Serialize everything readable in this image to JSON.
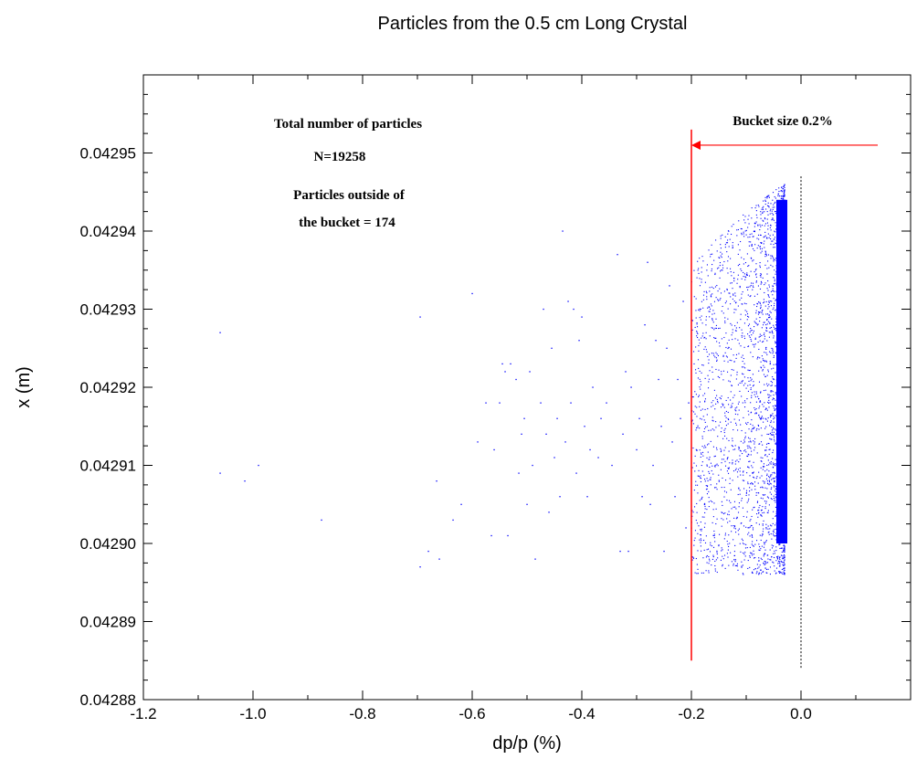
{
  "chart_data": {
    "type": "scatter",
    "title": "Particles from the 0.5 cm Long Crystal",
    "xlabel": "dp/p (%)",
    "ylabel": "x (m)",
    "xlim": [
      -1.2,
      0.2
    ],
    "ylim": [
      0.04288,
      0.04296
    ],
    "x_ticks": [
      "-1.2",
      "-1.0",
      "-0.8",
      "-0.6",
      "-0.4",
      "-0.2",
      "0.0"
    ],
    "y_ticks": [
      "0.04288",
      "0.04289",
      "0.04290",
      "0.04291",
      "0.04292",
      "0.04293",
      "0.04294",
      "0.04295"
    ],
    "x_tick_values": [
      -1.2,
      -1.0,
      -0.8,
      -0.6,
      -0.4,
      -0.2,
      0.0
    ],
    "y_tick_values": [
      0.04288,
      0.04289,
      0.0429,
      0.04291,
      0.04292,
      0.04293,
      0.04294,
      0.04295
    ],
    "grid": false,
    "colors": {
      "points": "#0000ff",
      "bucket": "#ff0000",
      "axis": "#000000"
    },
    "annotations": {
      "total_label": "Total number of particles",
      "total_value": "N=19258",
      "outside_line1": "Particles outside of",
      "outside_line2": "the bucket = 174",
      "bucket_label": "Bucket size 0.2%"
    },
    "bucket_line": {
      "x": -0.2,
      "y_from": 0.042885,
      "y_to": 0.042953
    },
    "zero_line": {
      "x": 0.0,
      "y_from": 0.042884,
      "y_to": 0.042947
    },
    "bucket_arrow": {
      "x_from": 0.14,
      "x_to": -0.2,
      "y": 0.042951
    },
    "points": [
      [
        -1.06,
        0.042927
      ],
      [
        -1.06,
        0.042909
      ],
      [
        -1.015,
        0.042908
      ],
      [
        -0.99,
        0.04291
      ],
      [
        -0.875,
        0.042903
      ],
      [
        -0.695,
        0.042929
      ],
      [
        -0.695,
        0.042897
      ],
      [
        -0.68,
        0.042899
      ],
      [
        -0.665,
        0.042908
      ],
      [
        -0.66,
        0.042898
      ],
      [
        -0.635,
        0.042903
      ],
      [
        -0.62,
        0.042905
      ],
      [
        -0.6,
        0.042932
      ],
      [
        -0.59,
        0.042913
      ],
      [
        -0.575,
        0.042918
      ],
      [
        -0.565,
        0.042901
      ],
      [
        -0.56,
        0.042912
      ],
      [
        -0.55,
        0.042918
      ],
      [
        -0.545,
        0.042923
      ],
      [
        -0.54,
        0.042922
      ],
      [
        -0.535,
        0.042901
      ],
      [
        -0.53,
        0.042923
      ],
      [
        -0.52,
        0.042921
      ],
      [
        -0.515,
        0.042909
      ],
      [
        -0.51,
        0.042914
      ],
      [
        -0.505,
        0.042916
      ],
      [
        -0.5,
        0.042905
      ],
      [
        -0.495,
        0.042922
      ],
      [
        -0.49,
        0.04291
      ],
      [
        -0.485,
        0.042898
      ],
      [
        -0.475,
        0.042918
      ],
      [
        -0.47,
        0.04293
      ],
      [
        -0.465,
        0.042914
      ],
      [
        -0.46,
        0.042904
      ],
      [
        -0.455,
        0.042925
      ],
      [
        -0.45,
        0.042911
      ],
      [
        -0.445,
        0.042916
      ],
      [
        -0.44,
        0.042906
      ],
      [
        -0.435,
        0.04294
      ],
      [
        -0.43,
        0.042913
      ],
      [
        -0.425,
        0.042931
      ],
      [
        -0.42,
        0.042918
      ],
      [
        -0.415,
        0.04293
      ],
      [
        -0.41,
        0.042909
      ],
      [
        -0.405,
        0.042926
      ],
      [
        -0.4,
        0.042929
      ],
      [
        -0.395,
        0.042915
      ],
      [
        -0.39,
        0.042906
      ],
      [
        -0.385,
        0.042912
      ],
      [
        -0.38,
        0.04292
      ],
      [
        -0.37,
        0.042911
      ],
      [
        -0.365,
        0.042916
      ],
      [
        -0.355,
        0.042918
      ],
      [
        -0.345,
        0.04291
      ],
      [
        -0.335,
        0.042937
      ],
      [
        -0.33,
        0.042899
      ],
      [
        -0.325,
        0.042914
      ],
      [
        -0.32,
        0.042922
      ],
      [
        -0.315,
        0.042899
      ],
      [
        -0.31,
        0.04292
      ],
      [
        -0.3,
        0.042912
      ],
      [
        -0.295,
        0.042916
      ],
      [
        -0.29,
        0.042906
      ],
      [
        -0.285,
        0.042928
      ],
      [
        -0.28,
        0.042936
      ],
      [
        -0.275,
        0.042905
      ],
      [
        -0.27,
        0.04291
      ],
      [
        -0.265,
        0.042926
      ],
      [
        -0.26,
        0.042921
      ],
      [
        -0.255,
        0.042915
      ],
      [
        -0.25,
        0.042899
      ],
      [
        -0.245,
        0.042925
      ],
      [
        -0.24,
        0.042933
      ],
      [
        -0.235,
        0.042913
      ],
      [
        -0.23,
        0.042906
      ],
      [
        -0.225,
        0.042921
      ],
      [
        -0.22,
        0.042916
      ],
      [
        -0.215,
        0.042931
      ],
      [
        -0.21,
        0.042902
      ],
      [
        -0.205,
        0.042918
      ]
    ]
  }
}
